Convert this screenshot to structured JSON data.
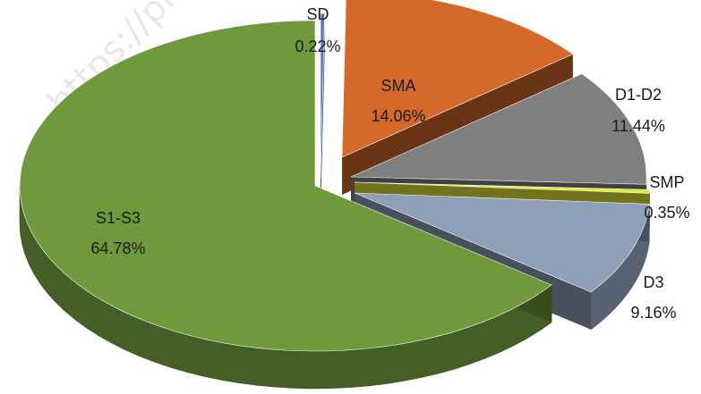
{
  "watermark": "https://pr",
  "chart_data": {
    "type": "pie",
    "style": "3d-exploded",
    "title": "",
    "legend": "none",
    "data_labels": "category-and-percent",
    "slices": [
      {
        "name": "SD",
        "value": 0.22,
        "label": "0.22%",
        "color": "#4f81bd"
      },
      {
        "name": "SMA",
        "value": 14.06,
        "label": "14.06%",
        "color": "#d4692a"
      },
      {
        "name": "D1-D2",
        "value": 11.44,
        "label": "11.44%",
        "color": "#7f7f7f"
      },
      {
        "name": "SMP",
        "value": 0.35,
        "label": "0.35%",
        "color": "#e6e63c"
      },
      {
        "name": "D3",
        "value": 9.16,
        "label": "9.16%",
        "color": "#8da0b8"
      },
      {
        "name": "S1-S3",
        "value": 64.78,
        "label": "64.78%",
        "color": "#6e9a3c"
      }
    ]
  }
}
